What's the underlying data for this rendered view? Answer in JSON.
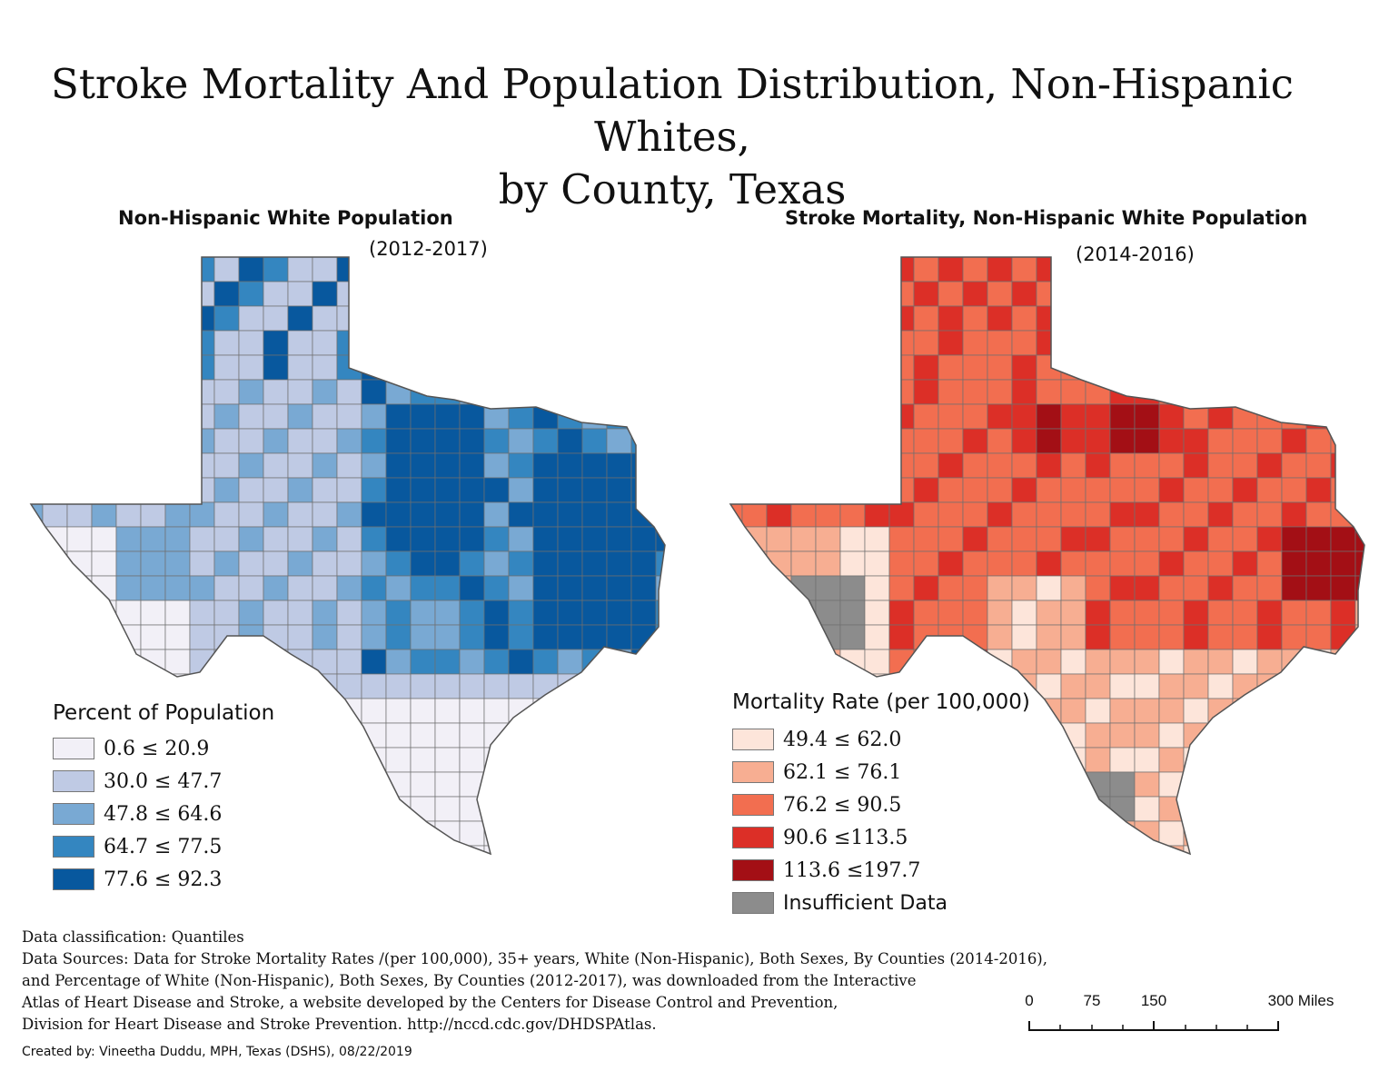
{
  "title": {
    "line1": "Stroke Mortality And Population Distribution, Non-Hispanic Whites,",
    "line2": "by County, Texas"
  },
  "left_map": {
    "title": "Non-Hispanic White Population",
    "period": "(2012-2017)",
    "legend_title": "Percent of Population",
    "legend": [
      {
        "label": "0.6 ≤ 20.9",
        "color": "#f2f0f7"
      },
      {
        "label": "30.0 ≤ 47.7",
        "color": "#bfcae4"
      },
      {
        "label": "47.8 ≤ 64.6",
        "color": "#79a9d3"
      },
      {
        "label": "64.7 ≤ 77.5",
        "color": "#3486c0"
      },
      {
        "label": "77.6 ≤ 92.3",
        "color": "#08589e"
      }
    ]
  },
  "right_map": {
    "title": "Stroke Mortality, Non-Hispanic White Population",
    "period": "(2014-2016)",
    "legend_title": "Mortality Rate (per 100,000)",
    "legend": [
      {
        "label": "49.4 ≤ 62.0",
        "color": "#fde5da"
      },
      {
        "label": "62.1 ≤ 76.1",
        "color": "#f7ae92"
      },
      {
        "label": "76.2 ≤ 90.5",
        "color": "#f26e50"
      },
      {
        "label": "90.6 ≤113.5",
        "color": "#dc2f27"
      },
      {
        "label": "113.6 ≤197.7",
        "color": "#a30f15"
      },
      {
        "label": "Insufficient Data",
        "color": "#8c8c8c"
      }
    ]
  },
  "notes": {
    "classification": "Data classification: Quantiles",
    "sources_1": "Data Sources: Data for Stroke Mortality Rates /(per 100,000), 35+ years, White (Non-Hispanic), Both Sexes, By Counties (2014-2016),",
    "sources_2": "and Percentage of White (Non-Hispanic),  Both Sexes, By Counties (2012-2017), was downloaded from the Interactive",
    "sources_3": "Atlas of Heart Disease and Stroke, a website developed by the Centers for Disease Control and Prevention,",
    "sources_4": "Division for Heart Disease and Stroke Prevention. http://nccd.cdc.gov/DHDSPAtlas."
  },
  "credit": "Created by: Vineetha Duddu, MPH, Texas (DSHS), 08/22/2019",
  "scale": {
    "labels": [
      "0",
      "75",
      "150",
      "300 Miles"
    ]
  }
}
